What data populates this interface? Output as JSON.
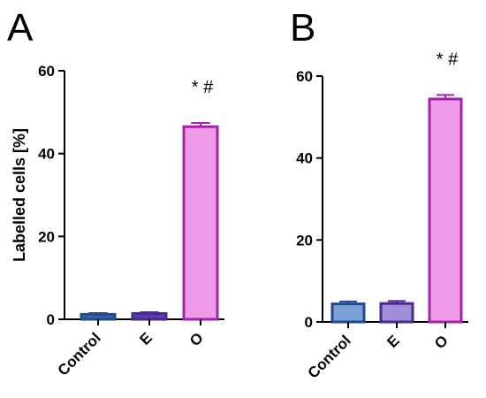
{
  "chart_data": [
    {
      "panel": "A",
      "type": "bar",
      "categories": [
        "Control",
        "E",
        "O"
      ],
      "values": [
        1.2,
        1.4,
        46.5
      ],
      "errors": [
        0.3,
        0.3,
        0.9
      ],
      "ylabel": "Labelled cells [%]",
      "ylim": [
        0,
        60
      ],
      "yticks": [
        0,
        20,
        40,
        60
      ],
      "annotations": [
        {
          "category": "O",
          "text": "* #"
        }
      ],
      "colors": {
        "fills": [
          "#3d5fa8",
          "#5b3ea6",
          "#ee9ae8"
        ],
        "edges": [
          "#23498a",
          "#4a2a8c",
          "#a125a6"
        ]
      },
      "grid": false,
      "legend": "none"
    },
    {
      "panel": "B",
      "type": "bar",
      "categories": [
        "Control",
        "E",
        "O"
      ],
      "values": [
        4.4,
        4.5,
        54.4
      ],
      "errors": [
        0.6,
        0.6,
        1.0
      ],
      "ylabel": "",
      "ylim": [
        0,
        60
      ],
      "yticks": [
        0,
        20,
        40,
        60
      ],
      "annotations": [
        {
          "category": "O",
          "text": "* #"
        }
      ],
      "colors": {
        "fills": [
          "#7ba0d8",
          "#a08ed8",
          "#ee9ae8"
        ],
        "edges": [
          "#23498a",
          "#4a2a8c",
          "#a125a6"
        ]
      },
      "grid": false,
      "legend": "none"
    }
  ]
}
